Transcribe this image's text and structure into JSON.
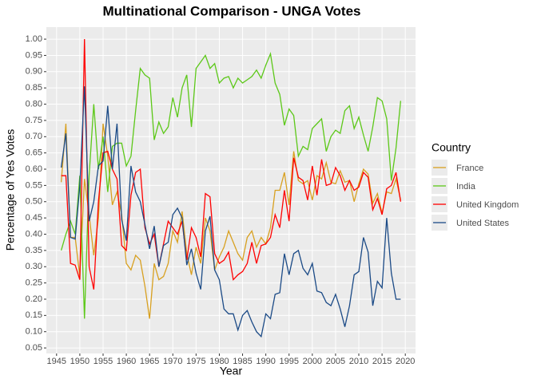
{
  "chart_data": {
    "type": "line",
    "title": "Multinational Comparison - UNGA Votes",
    "x_label": "Year",
    "y_label": "Percentage of Yes Votes",
    "legend_title": "Country",
    "legend": "right",
    "grid": true,
    "x": [
      1946,
      1947,
      1948,
      1949,
      1950,
      1951,
      1952,
      1953,
      1954,
      1955,
      1956,
      1957,
      1958,
      1959,
      1960,
      1961,
      1962,
      1963,
      1964,
      1965,
      1966,
      1967,
      1968,
      1969,
      1970,
      1971,
      1972,
      1973,
      1974,
      1975,
      1976,
      1977,
      1978,
      1979,
      1980,
      1981,
      1982,
      1983,
      1984,
      1985,
      1986,
      1987,
      1988,
      1989,
      1990,
      1991,
      1992,
      1993,
      1994,
      1995,
      1996,
      1997,
      1998,
      1999,
      2000,
      2001,
      2002,
      2003,
      2004,
      2005,
      2006,
      2007,
      2008,
      2009,
      2010,
      2011,
      2012,
      2013,
      2014,
      2015,
      2016,
      2017,
      2018,
      2019
    ],
    "xlim": [
      1942.8,
      2022.2
    ],
    "xticks": [
      1945,
      1950,
      1955,
      1960,
      1965,
      1970,
      1975,
      1980,
      1985,
      1990,
      1995,
      2000,
      2005,
      2010,
      2015,
      2020
    ],
    "ylim": [
      0.033,
      1.037
    ],
    "yticks": [
      {
        "value": 0.05,
        "label": "0.05"
      },
      {
        "value": 0.1,
        "label": "0.10"
      },
      {
        "value": 0.15,
        "label": "0.15"
      },
      {
        "value": 0.2,
        "label": "0.20"
      },
      {
        "value": 0.25,
        "label": "0.25"
      },
      {
        "value": 0.3,
        "label": "0.30"
      },
      {
        "value": 0.35,
        "label": "0.35"
      },
      {
        "value": 0.4,
        "label": "0.40"
      },
      {
        "value": 0.45,
        "label": "0.45"
      },
      {
        "value": 0.5,
        "label": "0.50"
      },
      {
        "value": 0.55,
        "label": "0.55"
      },
      {
        "value": 0.6,
        "label": "0.60"
      },
      {
        "value": 0.65,
        "label": "0.65"
      },
      {
        "value": 0.7,
        "label": "0.70"
      },
      {
        "value": 0.75,
        "label": "0.75"
      },
      {
        "value": 0.8,
        "label": "0.80"
      },
      {
        "value": 0.85,
        "label": "0.85"
      },
      {
        "value": 0.9,
        "label": "0.90"
      },
      {
        "value": 0.95,
        "label": "0.95"
      },
      {
        "value": 1.0,
        "label": "1.00"
      }
    ],
    "series": [
      {
        "name": "France",
        "color": "#D8A020",
        "values": [
          0.56,
          0.74,
          0.39,
          0.39,
          0.27,
          0.57,
          0.46,
          0.335,
          0.45,
          0.74,
          0.64,
          0.49,
          0.53,
          0.46,
          0.31,
          0.29,
          0.335,
          0.32,
          0.24,
          0.14,
          0.31,
          0.26,
          0.27,
          0.31,
          0.41,
          0.375,
          0.47,
          0.34,
          0.275,
          0.36,
          0.31,
          0.45,
          0.41,
          0.29,
          0.33,
          0.36,
          0.41,
          0.375,
          0.34,
          0.32,
          0.39,
          0.41,
          0.36,
          0.39,
          0.37,
          0.42,
          0.535,
          0.535,
          0.59,
          0.49,
          0.655,
          0.565,
          0.555,
          0.565,
          0.505,
          0.58,
          0.57,
          0.62,
          0.56,
          0.555,
          0.595,
          0.56,
          0.565,
          0.5,
          0.555,
          0.6,
          0.585,
          0.495,
          0.525,
          0.465,
          0.53,
          0.525,
          0.57,
          0.505
        ]
      },
      {
        "name": "India",
        "color": "#5CC818",
        "values": [
          0.35,
          0.4,
          0.44,
          0.4,
          0.58,
          0.14,
          0.58,
          0.8,
          0.6,
          0.7,
          0.53,
          0.67,
          0.68,
          0.68,
          0.61,
          0.64,
          0.78,
          0.91,
          0.89,
          0.88,
          0.69,
          0.745,
          0.71,
          0.73,
          0.82,
          0.76,
          0.85,
          0.89,
          0.73,
          0.91,
          0.93,
          0.95,
          0.91,
          0.925,
          0.865,
          0.88,
          0.885,
          0.85,
          0.88,
          0.865,
          0.875,
          0.885,
          0.905,
          0.88,
          0.92,
          0.955,
          0.865,
          0.83,
          0.735,
          0.785,
          0.765,
          0.64,
          0.67,
          0.66,
          0.725,
          0.74,
          0.755,
          0.655,
          0.7,
          0.72,
          0.71,
          0.78,
          0.795,
          0.725,
          0.76,
          0.705,
          0.655,
          0.73,
          0.82,
          0.81,
          0.755,
          0.565,
          0.665,
          0.81
        ]
      },
      {
        "name": "United Kingdom",
        "color": "#FF0000",
        "values": [
          0.58,
          0.58,
          0.31,
          0.305,
          0.26,
          1.0,
          0.3,
          0.23,
          0.5,
          0.65,
          0.655,
          0.6,
          0.57,
          0.365,
          0.35,
          0.52,
          0.59,
          0.6,
          0.42,
          0.37,
          0.4,
          0.3,
          0.37,
          0.44,
          0.42,
          0.4,
          0.44,
          0.32,
          0.42,
          0.39,
          0.33,
          0.525,
          0.515,
          0.34,
          0.31,
          0.32,
          0.345,
          0.26,
          0.275,
          0.285,
          0.31,
          0.375,
          0.31,
          0.365,
          0.37,
          0.39,
          0.46,
          0.42,
          0.535,
          0.44,
          0.635,
          0.575,
          0.565,
          0.505,
          0.61,
          0.52,
          0.63,
          0.55,
          0.555,
          0.605,
          0.58,
          0.535,
          0.565,
          0.535,
          0.545,
          0.59,
          0.575,
          0.475,
          0.51,
          0.46,
          0.54,
          0.55,
          0.59,
          0.5
        ]
      },
      {
        "name": "United States",
        "color": "#1B4A86",
        "values": [
          0.605,
          0.71,
          0.39,
          0.385,
          0.55,
          0.855,
          0.44,
          0.5,
          0.61,
          0.625,
          0.795,
          0.6,
          0.74,
          0.445,
          0.38,
          0.61,
          0.53,
          0.5,
          0.43,
          0.355,
          0.425,
          0.3,
          0.365,
          0.375,
          0.46,
          0.48,
          0.45,
          0.305,
          0.355,
          0.28,
          0.23,
          0.41,
          0.455,
          0.29,
          0.26,
          0.17,
          0.155,
          0.155,
          0.105,
          0.15,
          0.165,
          0.13,
          0.1,
          0.085,
          0.155,
          0.14,
          0.215,
          0.22,
          0.34,
          0.275,
          0.34,
          0.35,
          0.295,
          0.275,
          0.31,
          0.225,
          0.22,
          0.19,
          0.18,
          0.215,
          0.17,
          0.115,
          0.18,
          0.275,
          0.285,
          0.39,
          0.345,
          0.18,
          0.255,
          0.235,
          0.45,
          0.28,
          0.2,
          0.2
        ]
      }
    ]
  }
}
